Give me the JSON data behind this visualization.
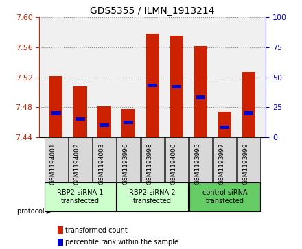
{
  "title": "GDS5355 / ILMN_1913214",
  "samples": [
    "GSM1194001",
    "GSM1194002",
    "GSM1194003",
    "GSM1193996",
    "GSM1193998",
    "GSM1194000",
    "GSM1193995",
    "GSM1193997",
    "GSM1193999"
  ],
  "transformed_counts": [
    7.521,
    7.508,
    7.481,
    7.477,
    7.578,
    7.576,
    7.562,
    7.474,
    7.527
  ],
  "percentile_ranks": [
    20,
    15,
    10,
    12,
    43,
    42,
    33,
    8,
    20
  ],
  "ymin": 7.44,
  "ymax": 7.6,
  "yticks": [
    7.44,
    7.48,
    7.52,
    7.56,
    7.6
  ],
  "right_yticks": [
    0,
    25,
    50,
    75,
    100
  ],
  "groups": [
    {
      "label": "RBP2-siRNA-1\ntransfected",
      "indices": [
        0,
        1,
        2
      ],
      "color": "#ccffcc"
    },
    {
      "label": "RBP2-siRNA-2\ntransfected",
      "indices": [
        3,
        4,
        5
      ],
      "color": "#ccffcc"
    },
    {
      "label": "control siRNA\ntransfected",
      "indices": [
        6,
        7,
        8
      ],
      "color": "#66cc66"
    }
  ],
  "bar_color": "#cc2200",
  "percentile_color": "#0000cc",
  "bar_width": 0.55,
  "background_color": "#ffffff",
  "plot_bg_color": "#f0f0f0",
  "grid_color": "#888888",
  "left_axis_color": "#cc2200",
  "right_axis_color": "#0000cc",
  "protocol_label": "protocol",
  "legend_items": [
    {
      "label": "transformed count",
      "color": "#cc2200"
    },
    {
      "label": "percentile rank within the sample",
      "color": "#0000cc"
    }
  ]
}
